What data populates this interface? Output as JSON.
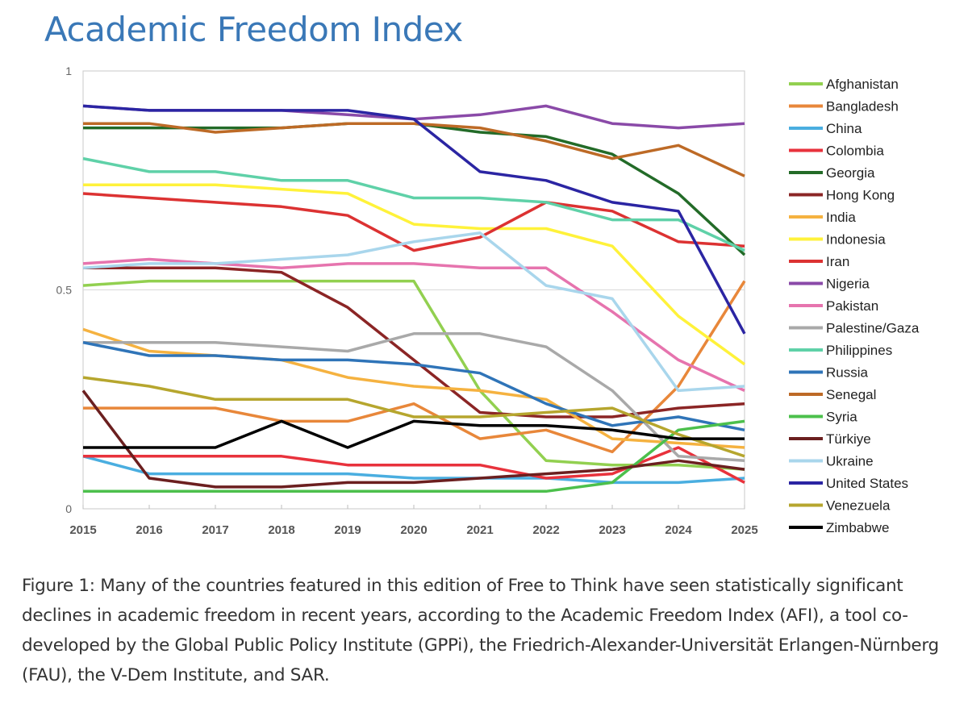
{
  "title": "Academic Freedom Index",
  "caption": "Figure 1: Many of the countries featured in this edition of Free to Think have seen statistically significant declines in academic freedom in recent years, according to the Academic Freedom Index (AFI), a tool co-developed by the Global Public Policy Institute (GPPi), the Friedrich-Alexander-Universität Erlangen-Nürnberg (FAU), the V-Dem Institute, and SAR.",
  "chart_data": {
    "type": "line",
    "title": "",
    "xlabel": "",
    "ylabel": "",
    "ylim": [
      0,
      1
    ],
    "yticks": [
      0,
      0.5,
      1
    ],
    "ytick_labels": [
      "0",
      "0.5",
      "1"
    ],
    "grid": "horizontal",
    "legend_position": "right",
    "x": [
      "2015",
      "2016",
      "2017",
      "2018",
      "2019",
      "2020",
      "2021",
      "2022",
      "2023",
      "2024",
      "2025"
    ],
    "series": [
      {
        "name": "Afghanistan",
        "color": "#92d050",
        "values": [
          0.51,
          0.52,
          0.52,
          0.52,
          0.52,
          0.52,
          0.27,
          0.11,
          0.1,
          0.1,
          0.09
        ]
      },
      {
        "name": "Bangladesh",
        "color": "#e8873a",
        "values": [
          0.23,
          0.23,
          0.23,
          0.2,
          0.2,
          0.24,
          0.16,
          0.18,
          0.13,
          0.28,
          0.52
        ]
      },
      {
        "name": "China",
        "color": "#4aaee0",
        "values": [
          0.12,
          0.08,
          0.08,
          0.08,
          0.08,
          0.07,
          0.07,
          0.07,
          0.06,
          0.06,
          0.07
        ]
      },
      {
        "name": "Colombia",
        "color": "#e8323c",
        "values": [
          0.12,
          0.12,
          0.12,
          0.12,
          0.1,
          0.1,
          0.1,
          0.07,
          0.08,
          0.14,
          0.06
        ]
      },
      {
        "name": "Georgia",
        "color": "#236b28",
        "values": [
          0.87,
          0.87,
          0.87,
          0.87,
          0.88,
          0.88,
          0.86,
          0.85,
          0.81,
          0.72,
          0.58
        ]
      },
      {
        "name": "Hong Kong",
        "color": "#8b2525",
        "values": [
          0.55,
          0.55,
          0.55,
          0.54,
          0.46,
          0.34,
          0.22,
          0.21,
          0.21,
          0.23,
          0.24
        ]
      },
      {
        "name": "India",
        "color": "#f5b240",
        "values": [
          0.41,
          0.36,
          0.35,
          0.34,
          0.3,
          0.28,
          0.27,
          0.25,
          0.16,
          0.15,
          0.14
        ]
      },
      {
        "name": "Indonesia",
        "color": "#fff23a",
        "values": [
          0.74,
          0.74,
          0.74,
          0.73,
          0.72,
          0.65,
          0.64,
          0.64,
          0.6,
          0.44,
          0.33
        ]
      },
      {
        "name": "Iran",
        "color": "#dc3232",
        "values": [
          0.72,
          0.71,
          0.7,
          0.69,
          0.67,
          0.59,
          0.62,
          0.7,
          0.68,
          0.61,
          0.6
        ]
      },
      {
        "name": "Nigeria",
        "color": "#8a4aa8",
        "values": [
          0.92,
          0.91,
          0.91,
          0.91,
          0.9,
          0.89,
          0.9,
          0.92,
          0.88,
          0.87,
          0.88
        ]
      },
      {
        "name": "Pakistan",
        "color": "#e674ae",
        "values": [
          0.56,
          0.57,
          0.56,
          0.55,
          0.56,
          0.56,
          0.55,
          0.55,
          0.45,
          0.34,
          0.27
        ]
      },
      {
        "name": "Palestine/Gaza",
        "color": "#a9a9a9",
        "values": [
          0.38,
          0.38,
          0.38,
          0.37,
          0.36,
          0.4,
          0.4,
          0.37,
          0.27,
          0.12,
          0.11
        ]
      },
      {
        "name": "Philippines",
        "color": "#5fd1a8",
        "values": [
          0.8,
          0.77,
          0.77,
          0.75,
          0.75,
          0.71,
          0.71,
          0.7,
          0.66,
          0.66,
          0.59
        ]
      },
      {
        "name": "Russia",
        "color": "#2f74b8",
        "values": [
          0.38,
          0.35,
          0.35,
          0.34,
          0.34,
          0.33,
          0.31,
          0.24,
          0.19,
          0.21,
          0.18
        ]
      },
      {
        "name": "Senegal",
        "color": "#bd6a26",
        "values": [
          0.88,
          0.88,
          0.86,
          0.87,
          0.88,
          0.88,
          0.87,
          0.84,
          0.8,
          0.83,
          0.76
        ]
      },
      {
        "name": "Syria",
        "color": "#4cc04c",
        "values": [
          0.04,
          0.04,
          0.04,
          0.04,
          0.04,
          0.04,
          0.04,
          0.04,
          0.06,
          0.18,
          0.2
        ]
      },
      {
        "name": "Türkiye",
        "color": "#6b1f1f",
        "values": [
          0.27,
          0.07,
          0.05,
          0.05,
          0.06,
          0.06,
          0.07,
          0.08,
          0.09,
          0.11,
          0.09
        ]
      },
      {
        "name": "Ukraine",
        "color": "#a9d6ec",
        "values": [
          0.55,
          0.56,
          0.56,
          0.57,
          0.58,
          0.61,
          0.63,
          0.51,
          0.48,
          0.27,
          0.28
        ]
      },
      {
        "name": "United States",
        "color": "#2b25a3",
        "values": [
          0.92,
          0.91,
          0.91,
          0.91,
          0.91,
          0.89,
          0.77,
          0.75,
          0.7,
          0.68,
          0.4
        ]
      },
      {
        "name": "Venezuela",
        "color": "#b6a62e",
        "values": [
          0.3,
          0.28,
          0.25,
          0.25,
          0.25,
          0.21,
          0.21,
          0.22,
          0.23,
          0.17,
          0.12
        ]
      },
      {
        "name": "Zimbabwe",
        "color": "#000000",
        "values": [
          0.14,
          0.14,
          0.14,
          0.2,
          0.14,
          0.2,
          0.19,
          0.19,
          0.18,
          0.16,
          0.16
        ]
      }
    ]
  }
}
